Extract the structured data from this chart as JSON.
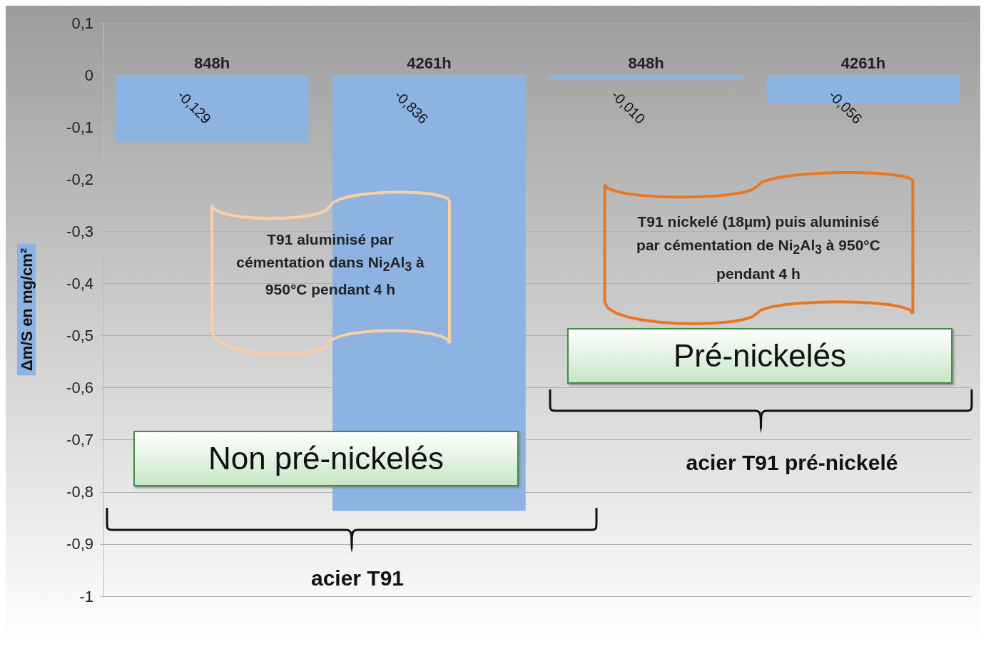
{
  "chart_data": {
    "type": "bar",
    "categories": [
      "848h",
      "4261h",
      "848h",
      "4261h"
    ],
    "values": [
      -0.129,
      -0.836,
      -0.01,
      -0.056
    ],
    "color": "#8db3e2",
    "value_labels": [
      "-0,129",
      "-0,836",
      "-0,010",
      "-0,056"
    ],
    "ylim": [
      -1,
      0.1
    ],
    "yticks": [
      {
        "value": 0.1,
        "label": "0,1"
      },
      0,
      {
        "value": -0.1,
        "label": "-0,1"
      },
      {
        "value": -0.2,
        "label": "-0,2"
      },
      {
        "value": -0.3,
        "label": "-0,3"
      },
      {
        "value": -0.4,
        "label": "-0,4"
      },
      {
        "value": -0.5,
        "label": "-0,5"
      },
      {
        "value": -0.6,
        "label": "-0,6"
      },
      {
        "value": -0.7,
        "label": "-0,7"
      },
      {
        "value": -0.8,
        "label": "-0,8"
      },
      {
        "value": -0.9,
        "label": "-0,9"
      },
      -1
    ],
    "ylabel": "Δm/S en mg/cm²",
    "grid": "y",
    "annotations": [
      "T91 aluminisé par cémentation dans Ni$_{2}$Al$_{3}$ à 950°C pendant 4 h",
      "T91 nickelé (18µm) puis aluminisé par cémentation de Ni$_{2}$Al$_{3}$ à 950°C pendant 4 h",
      "Non pré-nickelés",
      "Pré-nickelés",
      "acier T91",
      "acier T91 pré-nickelé"
    ]
  }
}
